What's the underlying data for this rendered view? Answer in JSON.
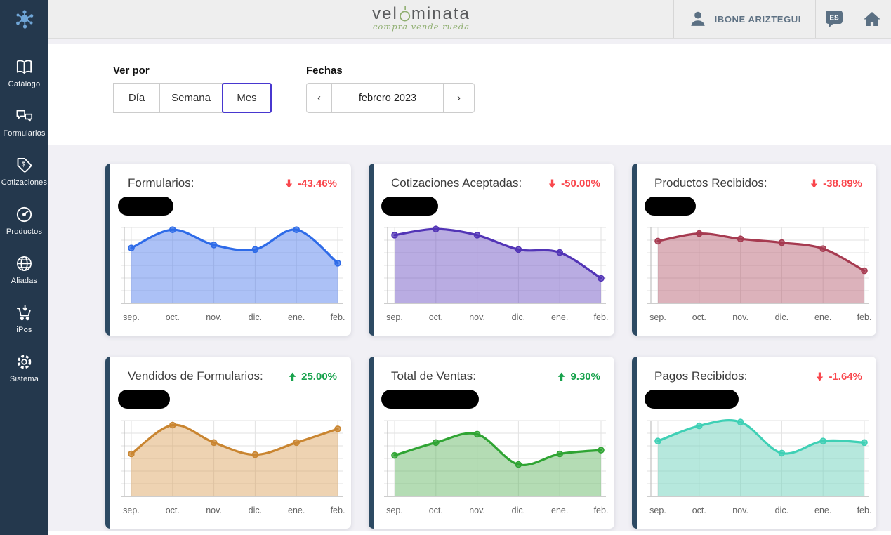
{
  "sidebar": {
    "items": [
      {
        "label": "Catálogo",
        "icon": "book-icon"
      },
      {
        "label": "Formularios",
        "icon": "chat-bubbles-icon"
      },
      {
        "label": "Cotizaciones",
        "icon": "price-tag-icon"
      },
      {
        "label": "Productos",
        "icon": "gauge-icon"
      },
      {
        "label": "Aliadas",
        "icon": "globe-icon"
      },
      {
        "label": "iPos",
        "icon": "cart-download-icon"
      },
      {
        "label": "Sistema",
        "icon": "gear-icon"
      }
    ]
  },
  "header": {
    "logo_text_left": "vel",
    "logo_text_right": "minata",
    "logo_tagline": "compra vende rueda",
    "user_name": "IBONE ARIZTEGUI",
    "language_badge": "ES"
  },
  "filters": {
    "view_by_label": "Ver por",
    "view_options": [
      {
        "label": "Día",
        "selected": false
      },
      {
        "label": "Semana",
        "selected": false
      },
      {
        "label": "Mes",
        "selected": true
      }
    ],
    "dates_label": "Fechas",
    "date_value": "febrero 2023",
    "prev_chevron": "‹",
    "next_chevron": "›"
  },
  "colors": {
    "sidebar_bg": "#24384d",
    "header_bg": "#eeeeee",
    "page_bg": "#f1f0f5",
    "card_accent": "#2d4a63",
    "selected_border": "#4837cf",
    "positive": "#17a24c",
    "negative": "#f9474d",
    "slate_icon": "#5b7083"
  },
  "chart_data": {
    "type": "area",
    "categories": [
      "sep.",
      "oct.",
      "nov.",
      "dic.",
      "ene.",
      "feb."
    ],
    "ylim": [
      0,
      100
    ],
    "grid": true,
    "legend": "none",
    "charts": [
      {
        "title": "Formularios:",
        "change": "-43.46%",
        "trend": "down",
        "line_color": "#2e6be8",
        "fill_color": "rgba(72,118,235,0.45)",
        "values": [
          73,
          97,
          77,
          71,
          97,
          53
        ],
        "value_redacted": true,
        "redact_width": 79
      },
      {
        "title": "Cotizaciones Aceptadas:",
        "change": "-50.00%",
        "trend": "down",
        "line_color": "#5234b6",
        "fill_color": "rgba(99,72,190,0.45)",
        "values": [
          90,
          98,
          90,
          71,
          67,
          33
        ],
        "value_redacted": true,
        "redact_width": 81
      },
      {
        "title": "Productos Recibidos:",
        "change": "-38.89%",
        "trend": "down",
        "line_color": "#a63a50",
        "fill_color": "rgba(178,84,104,0.45)",
        "values": [
          82,
          92,
          85,
          80,
          72,
          43
        ],
        "value_redacted": true,
        "redact_width": 73
      },
      {
        "title": "Vendidos de Formularios:",
        "change": "25.00%",
        "trend": "up",
        "line_color": "#c98530",
        "fill_color": "rgba(218,158,84,0.45)",
        "values": [
          56,
          94,
          71,
          55,
          71,
          89
        ],
        "value_redacted": true,
        "redact_width": 74
      },
      {
        "title": "Total de Ventas:",
        "change": "9.30%",
        "trend": "up",
        "line_color": "#2fa433",
        "fill_color": "rgba(88,178,88,0.45)",
        "values": [
          54,
          71,
          82,
          42,
          56,
          61
        ],
        "value_redacted": true,
        "redact_width": 139
      },
      {
        "title": "Pagos Recibidos:",
        "change": "-1.64%",
        "trend": "down",
        "line_color": "#3fd0b5",
        "fill_color": "rgba(110,210,188,0.5)",
        "values": [
          73,
          93,
          98,
          57,
          73,
          71
        ],
        "value_redacted": true,
        "redact_width": 134
      }
    ]
  }
}
